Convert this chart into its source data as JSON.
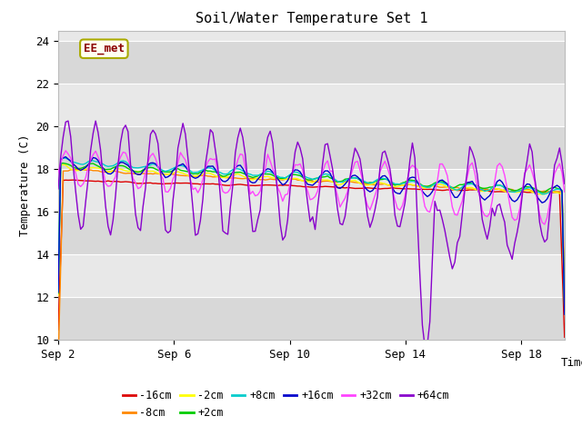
{
  "title": "Soil/Water Temperature Set 1",
  "xlabel": "Time",
  "ylabel": "Temperature (C)",
  "ylim": [
    10,
    24.5
  ],
  "yticks": [
    10,
    12,
    14,
    16,
    18,
    20,
    22,
    24
  ],
  "xlim_days": [
    0,
    17.5
  ],
  "xtick_labels": [
    "Sep 2",
    "Sep 6",
    "Sep 10",
    "Sep 14",
    "Sep 18"
  ],
  "xtick_positions": [
    0,
    4,
    8,
    12,
    16
  ],
  "annotation_text": "EE_met",
  "series_colors": {
    "-16cm": "#dd0000",
    "-8cm": "#ff8800",
    "-2cm": "#ffff00",
    "+2cm": "#00cc00",
    "+8cm": "#00cccc",
    "+16cm": "#0000cc",
    "+32cm": "#ff44ff",
    "+64cm": "#8800cc"
  },
  "legend_order": [
    "-16cm",
    "-8cm",
    "-2cm",
    "+2cm",
    "+8cm",
    "+16cm",
    "+32cm",
    "+64cm"
  ],
  "band_colors": [
    "#d8d8d8",
    "#e8e8e8"
  ],
  "font_family": "monospace"
}
